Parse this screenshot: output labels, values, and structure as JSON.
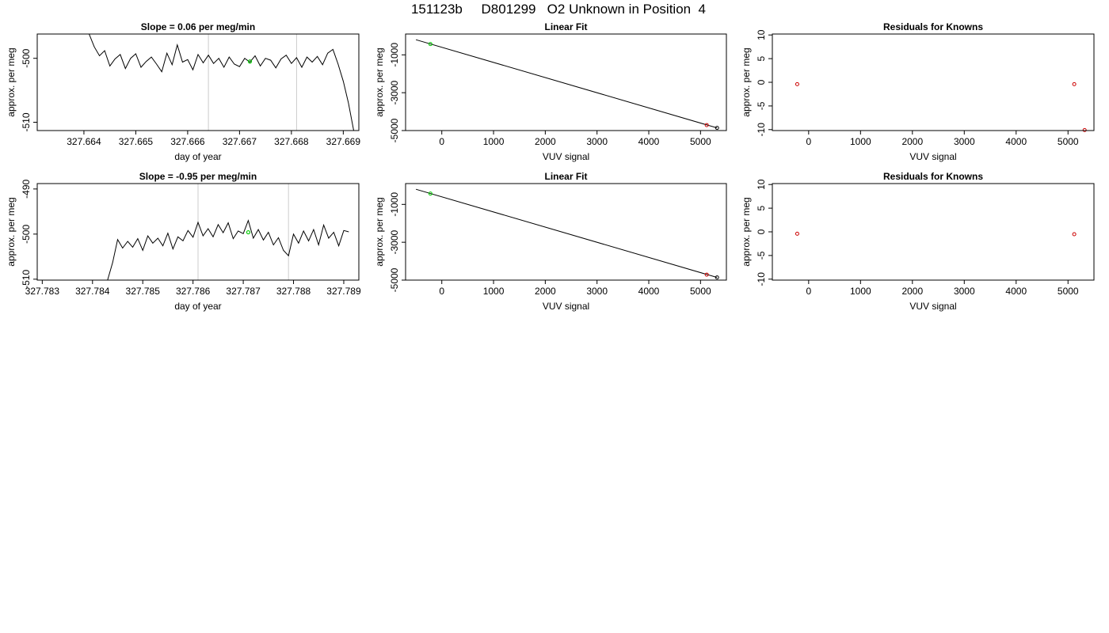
{
  "header": {
    "title": "151123b     D801299   O2 Unknown in Position  4"
  },
  "chart_data": [
    {
      "type": "line",
      "title": "Slope =  0.06  per meg/min",
      "xlabel": "day of year",
      "ylabel": "approx. per meg",
      "xlim": [
        327.6631,
        327.6693
      ],
      "ylim": [
        -511.3,
        -496.2
      ],
      "xticks": [
        "327.664",
        "327.665",
        "327.666",
        "327.667",
        "327.668",
        "327.669"
      ],
      "yticks": [
        "-500",
        "-510"
      ],
      "vlines": [
        327.6664,
        327.6681
      ],
      "series": [
        {
          "x": [
            327.6641,
            327.6642,
            327.6643,
            327.6644,
            327.6645,
            327.6646,
            327.6647,
            327.6648,
            327.6649,
            327.665,
            327.6651,
            327.6652,
            327.6653,
            327.6654,
            327.6655,
            327.6656,
            327.6657,
            327.6658,
            327.6659,
            327.666,
            327.6661,
            327.6662,
            327.6663,
            327.6664,
            327.6665,
            327.6666,
            327.6667,
            327.6668,
            327.6669,
            327.667,
            327.6671,
            327.6672,
            327.6673,
            327.6674,
            327.6675,
            327.6676,
            327.6677,
            327.6678,
            327.6679,
            327.668,
            327.6681,
            327.6682,
            327.6683,
            327.6684,
            327.6685,
            327.6686,
            327.6687,
            327.6688,
            327.6689,
            327.669,
            327.6691,
            327.6692
          ],
          "y": [
            -496.2,
            -498.2,
            -499.6,
            -498.8,
            -501.2,
            -500.1,
            -499.4,
            -501.6,
            -500.0,
            -499.3,
            -501.4,
            -500.5,
            -499.8,
            -500.9,
            -502.1,
            -499.2,
            -501.0,
            -497.9,
            -500.6,
            -500.2,
            -501.8,
            -499.4,
            -500.7,
            -499.5,
            -500.8,
            -500.0,
            -501.4,
            -499.8,
            -500.9,
            -501.3,
            -500.0,
            -500.6,
            -499.6,
            -501.2,
            -500.0,
            -500.3,
            -501.5,
            -500.1,
            -499.5,
            -500.8,
            -499.9,
            -501.4,
            -499.8,
            -500.6,
            -499.7,
            -501.0,
            -499.2,
            -498.6,
            -500.9,
            -503.6,
            -507.0,
            -511.3
          ]
        }
      ],
      "highlight": [
        {
          "x": 327.6672,
          "y": -500.5,
          "color": "#00cc00"
        }
      ]
    },
    {
      "type": "scatter",
      "title": "Linear Fit",
      "xlabel": "VUV signal",
      "ylabel": "approx. per meg",
      "xlim": [
        -700,
        5500
      ],
      "ylim": [
        -5000,
        100
      ],
      "xticks": [
        "0",
        "1000",
        "2000",
        "3000",
        "4000",
        "5000"
      ],
      "yticks": [
        "-1000",
        "-3000",
        "-5000"
      ],
      "fit_line": {
        "x": [
          -500,
          5320
        ],
        "y": [
          -200,
          -4860
        ]
      },
      "points": [
        {
          "x": -220,
          "y": -430,
          "color": "#00cc00"
        },
        {
          "x": 5120,
          "y": -4710,
          "color": "#cc0000"
        },
        {
          "x": 5320,
          "y": -4860,
          "color": "#000000"
        }
      ]
    },
    {
      "type": "scatter",
      "title": "Residuals for Knowns",
      "xlabel": "VUV signal",
      "ylabel": "approx. per meg",
      "xlim": [
        -700,
        5500
      ],
      "ylim": [
        -10.2,
        10.2
      ],
      "xticks": [
        "0",
        "1000",
        "2000",
        "3000",
        "4000",
        "5000"
      ],
      "yticks": [
        "10",
        "5",
        "0",
        "-5",
        "-10"
      ],
      "points": [
        {
          "x": -220,
          "y": -0.4,
          "color": "#cc0000"
        },
        {
          "x": 5120,
          "y": -0.4,
          "color": "#cc0000"
        },
        {
          "x": 5320,
          "y": -10.1,
          "color": "#cc0000"
        }
      ]
    },
    {
      "type": "line",
      "title": "Slope =  -0.95  per meg/min",
      "xlabel": "day of year",
      "ylabel": "approx. per meg",
      "xlim": [
        327.7829,
        327.7893
      ],
      "ylim": [
        -510.2,
        -488.8
      ],
      "xticks": [
        "327.783",
        "327.784",
        "327.785",
        "327.786",
        "327.787",
        "327.788",
        "327.789"
      ],
      "yticks": [
        "-490",
        "-500",
        "-510"
      ],
      "vlines": [
        327.7861,
        327.7879
      ],
      "series": [
        {
          "x": [
            327.7843,
            327.7844,
            327.7845,
            327.7846,
            327.7847,
            327.7848,
            327.7849,
            327.785,
            327.7851,
            327.7852,
            327.7853,
            327.7854,
            327.7855,
            327.7856,
            327.7857,
            327.7858,
            327.7859,
            327.786,
            327.7861,
            327.7862,
            327.7863,
            327.7864,
            327.7865,
            327.7866,
            327.7867,
            327.7868,
            327.7869,
            327.787,
            327.7871,
            327.7872,
            327.7873,
            327.7874,
            327.7875,
            327.7876,
            327.7877,
            327.7878,
            327.7879,
            327.788,
            327.7881,
            327.7882,
            327.7883,
            327.7884,
            327.7885,
            327.7886,
            327.7887,
            327.7888,
            327.7889,
            327.789,
            327.7891
          ],
          "y": [
            -510.2,
            -506.3,
            -501.2,
            -503.1,
            -501.6,
            -502.9,
            -501.0,
            -503.6,
            -500.4,
            -502.0,
            -500.9,
            -502.6,
            -499.8,
            -503.3,
            -500.6,
            -501.5,
            -499.2,
            -500.7,
            -497.4,
            -500.4,
            -498.8,
            -500.6,
            -497.9,
            -499.7,
            -497.5,
            -501.0,
            -499.3,
            -499.9,
            -497.0,
            -500.9,
            -499.0,
            -501.3,
            -499.6,
            -502.4,
            -500.8,
            -503.6,
            -504.8,
            -500.0,
            -502.0,
            -499.3,
            -501.5,
            -499.0,
            -502.4,
            -498.0,
            -500.9,
            -499.6,
            -502.6,
            -499.2,
            -499.5
          ]
        }
      ],
      "highlight": [
        {
          "x": 327.7871,
          "y": -499.6,
          "color": "#00cc00"
        }
      ]
    },
    {
      "type": "scatter",
      "title": "Linear Fit",
      "xlabel": "VUV signal",
      "ylabel": "approx. per meg",
      "xlim": [
        -700,
        5500
      ],
      "ylim": [
        -5000,
        100
      ],
      "xticks": [
        "0",
        "1000",
        "2000",
        "3000",
        "4000",
        "5000"
      ],
      "yticks": [
        "-1000",
        "-3000",
        "-5000"
      ],
      "fit_line": {
        "x": [
          -500,
          5320
        ],
        "y": [
          -200,
          -4860
        ]
      },
      "points": [
        {
          "x": -220,
          "y": -430,
          "color": "#00cc00"
        },
        {
          "x": 5120,
          "y": -4710,
          "color": "#cc0000"
        },
        {
          "x": 5320,
          "y": -4860,
          "color": "#000000"
        }
      ]
    },
    {
      "type": "scatter",
      "title": "Residuals for Knowns",
      "xlabel": "VUV signal",
      "ylabel": "approx. per meg",
      "xlim": [
        -700,
        5500
      ],
      "ylim": [
        -10.2,
        10.2
      ],
      "xticks": [
        "0",
        "1000",
        "2000",
        "3000",
        "4000",
        "5000"
      ],
      "yticks": [
        "10",
        "5",
        "0",
        "-5",
        "-10"
      ],
      "points": [
        {
          "x": -220,
          "y": -0.4,
          "color": "#cc0000"
        },
        {
          "x": 5120,
          "y": -0.5,
          "color": "#cc0000"
        }
      ]
    }
  ]
}
